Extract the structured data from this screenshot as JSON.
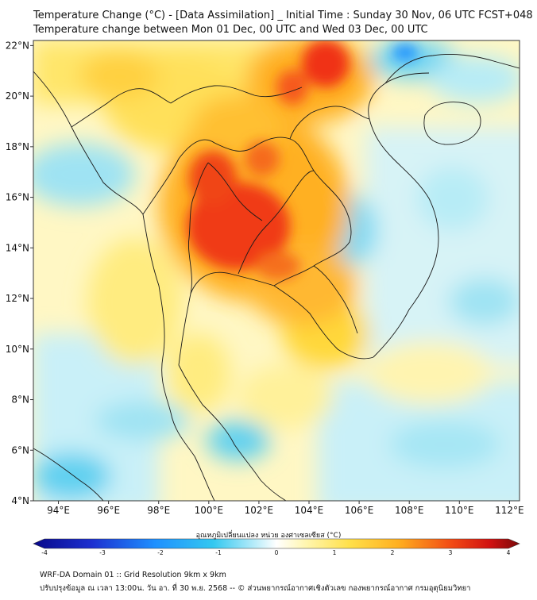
{
  "header": {
    "title_line1": "Temperature Change (°C) - [Data Assimilation] _ Initial Time : Sunday 30 Nov, 06 UTC FCST+048",
    "title_line2": "Temperature change between Mon 01 Dec, 00 UTC and Wed 03 Dec, 00 UTC"
  },
  "map": {
    "lat_labels": [
      "22°N",
      "20°N",
      "18°N",
      "16°N",
      "14°N",
      "12°N",
      "10°N",
      "8°N",
      "6°N",
      "4°N"
    ],
    "lon_labels": [
      "94°E",
      "96°E",
      "98°E",
      "100°E",
      "102°E",
      "104°E",
      "106°E",
      "108°E",
      "110°E",
      "112°E"
    ],
    "lat_range": [
      4,
      22.2
    ],
    "lon_range": [
      93,
      112.4
    ]
  },
  "colorbar": {
    "title": "อุณหภูมิเปลี่ยนแปลง หน่วย องศาเซลเซียส (°C)",
    "range": [
      -4,
      4
    ],
    "ticks": [
      "-4",
      "-3",
      "-2",
      "-1",
      "0",
      "1",
      "2",
      "3",
      "4"
    ]
  },
  "footer": {
    "line1": "WRF-DA Domain 01 :: Grid Resolution 9km x 9km",
    "line2": "ปรับปรุงข้อมูล ณ เวลา 13:00น. วัน อา. ที่ 30 พ.ย. 2568 -- © ส่วนพยากรณ์อากาศเชิงตัวเลข กองพยากรณ์อากาศ กรมอุตุนิยมวิทยา"
  },
  "colors": {
    "deep_blue": "#08088a",
    "blue": "#1e90ff",
    "cyan": "#33c8f0",
    "light_cyan": "#bfeefa",
    "white": "#ffffff",
    "light_yellow": "#fff3a8",
    "yellow": "#ffd21e",
    "orange": "#ff9c1a",
    "red": "#f22a14",
    "dark_red": "#7a0a0a"
  }
}
